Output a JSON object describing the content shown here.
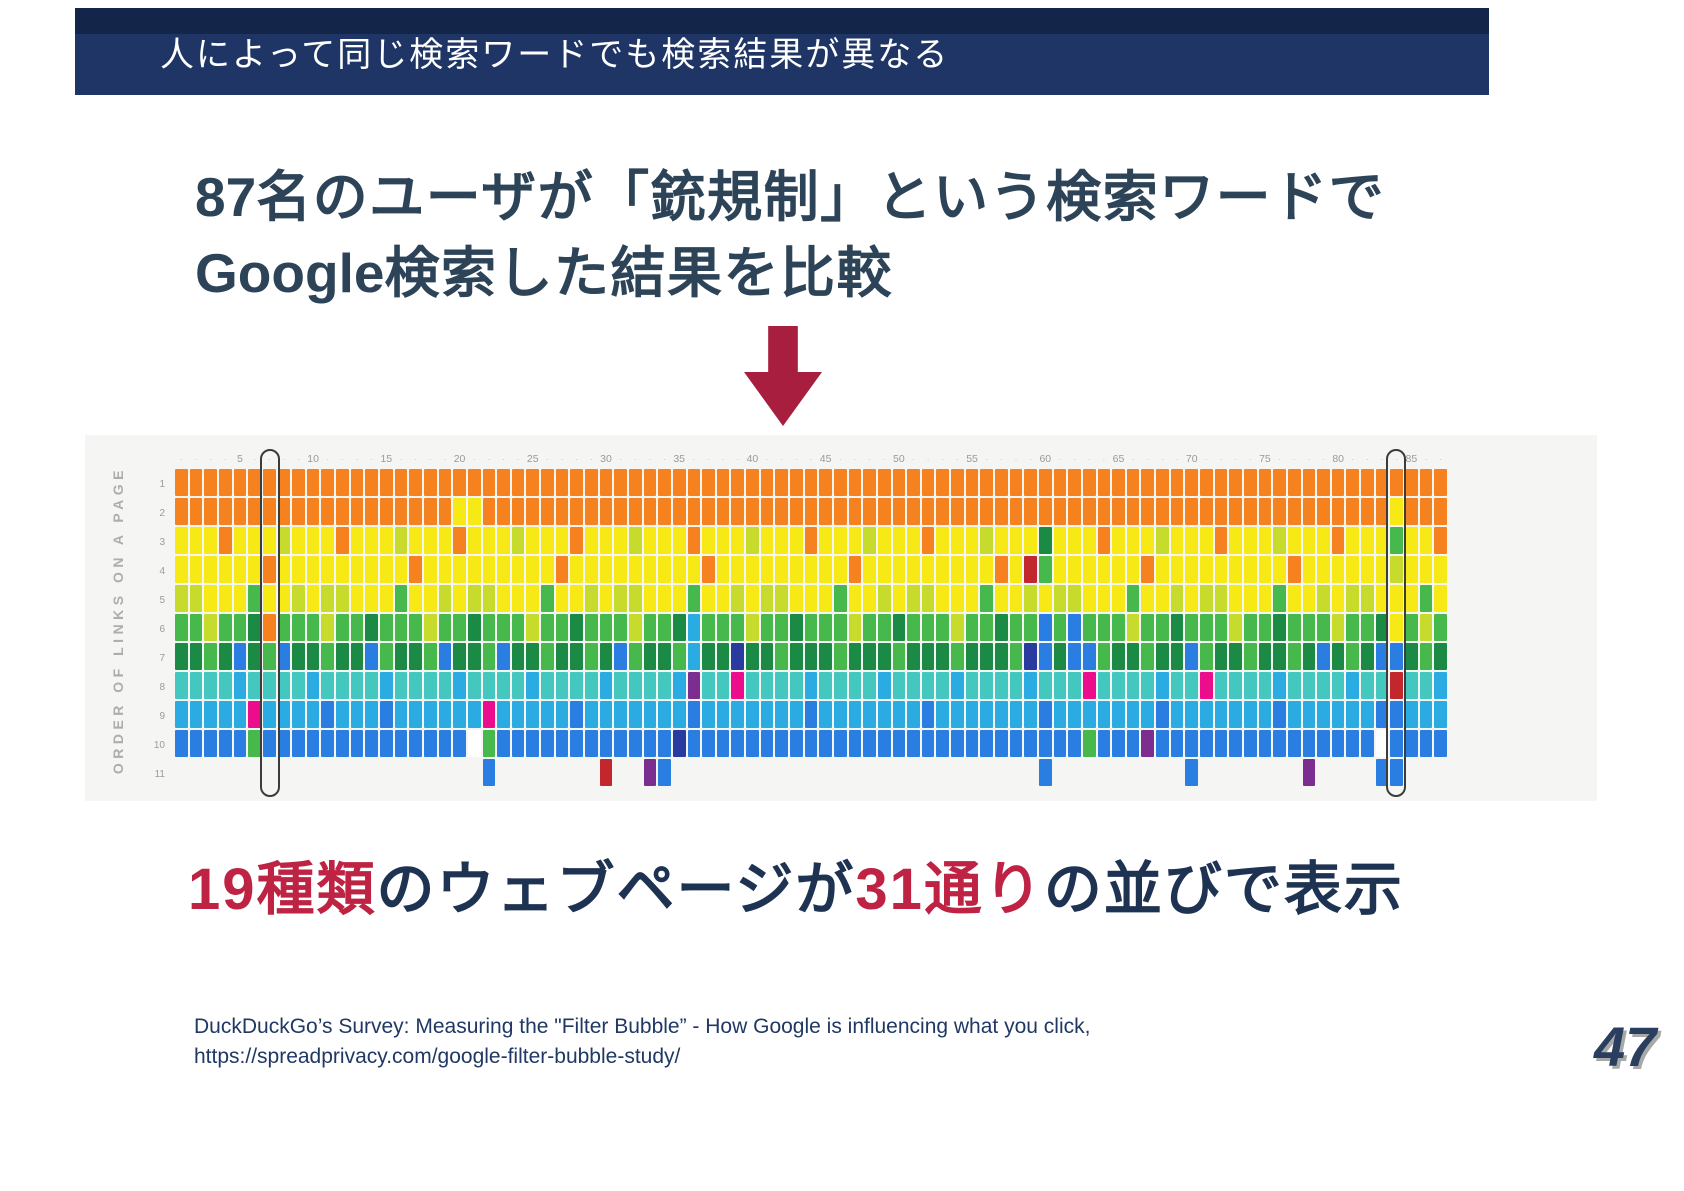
{
  "header": {
    "title": "人によって同じ検索ワードでも検索結果が異なる",
    "bg_color": "#1e3565"
  },
  "heading": {
    "line1": {
      "num": "87",
      "pre": "名のユーザが「",
      "term": "銃規制",
      "post": "」という検索ワードで"
    },
    "line2": {
      "en": "Google",
      "text": "検索した結果を比較"
    }
  },
  "arrow_color": "#a81e3f",
  "conclusion": {
    "red1": "19種類",
    "navy1": "のウェブページが",
    "red2": "31通り",
    "navy2": "の並びで表示",
    "red_color": "#be2343",
    "navy_color": "#1e3252"
  },
  "footer": {
    "line1": "DuckDuckGo’s Survey: Measuring the \"Filter Bubble” - How Google is influencing what you click,",
    "line2": "https://spreadprivacy.com/google-filter-bubble-study/",
    "page_number": "47"
  },
  "chart_data": {
    "type": "heatmap",
    "title": "",
    "ylabel": "ORDER OF LINKS ON A PAGE",
    "n_cols": 87,
    "x_tick_interval": 5,
    "x_tick_labels": [
      5,
      10,
      15,
      20,
      25,
      30,
      35,
      40,
      45,
      50,
      55,
      60,
      65,
      70,
      75,
      80,
      85
    ],
    "row_labels": [
      "1",
      "2",
      "3",
      "4",
      "5",
      "6",
      "7",
      "8",
      "9",
      "10",
      "11"
    ],
    "highlighted_columns": [
      7,
      84
    ],
    "palette": {
      "O": "#F6821F",
      "Y": "#F6E916",
      "G": "#C6DB2B",
      "g": "#47B84C",
      "D": "#1B8A44",
      "T": "#43C7BE",
      "C": "#2AACE3",
      "B": "#2A7DE1",
      "N": "#2A3B9F",
      "M": "#EB0D8C",
      "R": "#C1272D",
      "P": "#7B2D90",
      "W": "#FFFFFF",
      "_": "transparent"
    },
    "rows": [
      [
        [
          87,
          "O"
        ]
      ],
      [
        [
          19,
          "O"
        ],
        [
          2,
          "Y"
        ],
        [
          62,
          "O"
        ],
        [
          1,
          "Y"
        ],
        [
          3,
          "O"
        ]
      ],
      [
        [
          3,
          "Y"
        ],
        [
          1,
          "O"
        ],
        [
          3,
          "Y"
        ],
        [
          1,
          "G"
        ],
        [
          3,
          "Y"
        ],
        [
          1,
          "O"
        ],
        [
          3,
          "Y"
        ],
        [
          1,
          "G"
        ],
        [
          3,
          "Y"
        ],
        [
          1,
          "O"
        ],
        [
          3,
          "Y"
        ],
        [
          1,
          "G"
        ],
        [
          3,
          "Y"
        ],
        [
          1,
          "O"
        ],
        [
          3,
          "Y"
        ],
        [
          1,
          "G"
        ],
        [
          3,
          "Y"
        ],
        [
          1,
          "O"
        ],
        [
          3,
          "Y"
        ],
        [
          1,
          "G"
        ],
        [
          3,
          "Y"
        ],
        [
          1,
          "O"
        ],
        [
          3,
          "Y"
        ],
        [
          1,
          "G"
        ],
        [
          3,
          "Y"
        ],
        [
          1,
          "O"
        ],
        [
          3,
          "Y"
        ],
        [
          1,
          "G"
        ],
        [
          3,
          "Y"
        ],
        [
          1,
          "D"
        ],
        [
          3,
          "Y"
        ],
        [
          1,
          "O"
        ],
        [
          3,
          "Y"
        ],
        [
          1,
          "G"
        ],
        [
          3,
          "Y"
        ],
        [
          1,
          "O"
        ],
        [
          3,
          "Y"
        ],
        [
          1,
          "G"
        ],
        [
          3,
          "Y"
        ],
        [
          1,
          "O"
        ],
        [
          3,
          "Y"
        ],
        [
          1,
          "g"
        ],
        [
          2,
          "Y"
        ],
        [
          1,
          "O"
        ]
      ],
      [
        [
          6,
          "Y"
        ],
        [
          1,
          "O"
        ],
        [
          3,
          "Y"
        ],
        [
          6,
          "Y"
        ],
        [
          1,
          "O"
        ],
        [
          3,
          "Y"
        ],
        [
          6,
          "Y"
        ],
        [
          1,
          "O"
        ],
        [
          3,
          "Y"
        ],
        [
          6,
          "Y"
        ],
        [
          1,
          "O"
        ],
        [
          3,
          "Y"
        ],
        [
          6,
          "Y"
        ],
        [
          1,
          "O"
        ],
        [
          3,
          "Y"
        ],
        [
          6,
          "Y"
        ],
        [
          1,
          "O"
        ],
        [
          1,
          "Y"
        ],
        [
          1,
          "R"
        ],
        [
          1,
          "g"
        ],
        [
          6,
          "Y"
        ],
        [
          1,
          "O"
        ],
        [
          3,
          "Y"
        ],
        [
          6,
          "Y"
        ],
        [
          1,
          "O"
        ],
        [
          3,
          "Y"
        ],
        [
          3,
          "Y"
        ],
        [
          1,
          "G"
        ],
        [
          3,
          "Y"
        ]
      ],
      [
        [
          2,
          "G"
        ],
        [
          3,
          "Y"
        ],
        [
          1,
          "g"
        ],
        [
          2,
          "Y"
        ],
        [
          1,
          "G"
        ],
        [
          1,
          "Y"
        ],
        [
          2,
          "G"
        ],
        [
          3,
          "Y"
        ],
        [
          1,
          "g"
        ],
        [
          2,
          "Y"
        ],
        [
          1,
          "G"
        ],
        [
          1,
          "Y"
        ],
        [
          2,
          "G"
        ],
        [
          3,
          "Y"
        ],
        [
          1,
          "g"
        ],
        [
          2,
          "Y"
        ],
        [
          1,
          "G"
        ],
        [
          1,
          "Y"
        ],
        [
          2,
          "G"
        ],
        [
          3,
          "Y"
        ],
        [
          1,
          "g"
        ],
        [
          2,
          "Y"
        ],
        [
          1,
          "G"
        ],
        [
          1,
          "Y"
        ],
        [
          2,
          "G"
        ],
        [
          3,
          "Y"
        ],
        [
          1,
          "g"
        ],
        [
          2,
          "Y"
        ],
        [
          1,
          "G"
        ],
        [
          1,
          "Y"
        ],
        [
          2,
          "G"
        ],
        [
          3,
          "Y"
        ],
        [
          1,
          "g"
        ],
        [
          2,
          "Y"
        ],
        [
          1,
          "G"
        ],
        [
          1,
          "Y"
        ],
        [
          2,
          "G"
        ],
        [
          3,
          "Y"
        ],
        [
          1,
          "g"
        ],
        [
          2,
          "Y"
        ],
        [
          1,
          "G"
        ],
        [
          1,
          "Y"
        ],
        [
          2,
          "G"
        ],
        [
          3,
          "Y"
        ],
        [
          1,
          "g"
        ],
        [
          2,
          "Y"
        ],
        [
          1,
          "G"
        ],
        [
          1,
          "Y"
        ],
        [
          2,
          "G"
        ],
        [
          3,
          "Y"
        ],
        [
          1,
          "g"
        ],
        [
          1,
          "Y"
        ]
      ],
      [
        [
          2,
          "g"
        ],
        [
          1,
          "G"
        ],
        [
          2,
          "g"
        ],
        [
          1,
          "D"
        ],
        [
          1,
          "O"
        ],
        [
          3,
          "g"
        ],
        [
          1,
          "G"
        ],
        [
          2,
          "g"
        ],
        [
          1,
          "D"
        ],
        [
          3,
          "g"
        ],
        [
          1,
          "G"
        ],
        [
          2,
          "g"
        ],
        [
          1,
          "D"
        ],
        [
          3,
          "g"
        ],
        [
          1,
          "G"
        ],
        [
          2,
          "g"
        ],
        [
          1,
          "D"
        ],
        [
          3,
          "g"
        ],
        [
          1,
          "G"
        ],
        [
          2,
          "g"
        ],
        [
          1,
          "D"
        ],
        [
          1,
          "C"
        ],
        [
          3,
          "g"
        ],
        [
          1,
          "G"
        ],
        [
          2,
          "g"
        ],
        [
          1,
          "D"
        ],
        [
          3,
          "g"
        ],
        [
          1,
          "G"
        ],
        [
          2,
          "g"
        ],
        [
          1,
          "D"
        ],
        [
          3,
          "g"
        ],
        [
          1,
          "G"
        ],
        [
          2,
          "g"
        ],
        [
          1,
          "D"
        ],
        [
          2,
          "g"
        ],
        [
          1,
          "B"
        ],
        [
          1,
          "g"
        ],
        [
          1,
          "B"
        ],
        [
          3,
          "g"
        ],
        [
          1,
          "G"
        ],
        [
          2,
          "g"
        ],
        [
          1,
          "D"
        ],
        [
          3,
          "g"
        ],
        [
          1,
          "G"
        ],
        [
          2,
          "g"
        ],
        [
          1,
          "D"
        ],
        [
          3,
          "g"
        ],
        [
          1,
          "G"
        ],
        [
          2,
          "g"
        ],
        [
          1,
          "D"
        ],
        [
          1,
          "Y"
        ],
        [
          1,
          "g"
        ],
        [
          1,
          "G"
        ],
        [
          1,
          "g"
        ]
      ],
      [
        [
          2,
          "D"
        ],
        [
          1,
          "g"
        ],
        [
          1,
          "D"
        ],
        [
          1,
          "B"
        ],
        [
          1,
          "D"
        ],
        [
          1,
          "g"
        ],
        [
          1,
          "B"
        ],
        [
          2,
          "D"
        ],
        [
          1,
          "g"
        ],
        [
          2,
          "D"
        ],
        [
          1,
          "B"
        ],
        [
          1,
          "g"
        ],
        [
          2,
          "D"
        ],
        [
          1,
          "g"
        ],
        [
          1,
          "B"
        ],
        [
          2,
          "D"
        ],
        [
          1,
          "g"
        ],
        [
          1,
          "B"
        ],
        [
          2,
          "D"
        ],
        [
          1,
          "g"
        ],
        [
          2,
          "D"
        ],
        [
          1,
          "g"
        ],
        [
          1,
          "D"
        ],
        [
          1,
          "B"
        ],
        [
          1,
          "g"
        ],
        [
          2,
          "D"
        ],
        [
          1,
          "g"
        ],
        [
          1,
          "C"
        ],
        [
          2,
          "D"
        ],
        [
          1,
          "N"
        ],
        [
          2,
          "D"
        ],
        [
          1,
          "g"
        ],
        [
          1,
          "D"
        ],
        [
          2,
          "D"
        ],
        [
          1,
          "g"
        ],
        [
          1,
          "D"
        ],
        [
          2,
          "D"
        ],
        [
          1,
          "g"
        ],
        [
          1,
          "D"
        ],
        [
          2,
          "D"
        ],
        [
          1,
          "g"
        ],
        [
          1,
          "D"
        ],
        [
          2,
          "D"
        ],
        [
          1,
          "g"
        ],
        [
          1,
          "N"
        ],
        [
          1,
          "B"
        ],
        [
          1,
          "D"
        ],
        [
          1,
          "B"
        ],
        [
          1,
          "B"
        ],
        [
          1,
          "g"
        ],
        [
          2,
          "D"
        ],
        [
          1,
          "g"
        ],
        [
          2,
          "D"
        ],
        [
          1,
          "B"
        ],
        [
          1,
          "g"
        ],
        [
          2,
          "D"
        ],
        [
          1,
          "g"
        ],
        [
          2,
          "D"
        ],
        [
          1,
          "g"
        ],
        [
          1,
          "D"
        ],
        [
          1,
          "B"
        ],
        [
          1,
          "D"
        ],
        [
          1,
          "g"
        ],
        [
          1,
          "D"
        ],
        [
          1,
          "B"
        ],
        [
          1,
          "B"
        ],
        [
          1,
          "D"
        ],
        [
          1,
          "g"
        ],
        [
          1,
          "D"
        ]
      ],
      [
        [
          4,
          "T"
        ],
        [
          1,
          "C"
        ],
        [
          4,
          "T"
        ],
        [
          1,
          "C"
        ],
        [
          4,
          "T"
        ],
        [
          1,
          "C"
        ],
        [
          4,
          "T"
        ],
        [
          1,
          "C"
        ],
        [
          4,
          "T"
        ],
        [
          1,
          "C"
        ],
        [
          4,
          "T"
        ],
        [
          1,
          "C"
        ],
        [
          4,
          "T"
        ],
        [
          1,
          "C"
        ],
        [
          1,
          "P"
        ],
        [
          2,
          "T"
        ],
        [
          1,
          "M"
        ],
        [
          4,
          "T"
        ],
        [
          1,
          "C"
        ],
        [
          4,
          "T"
        ],
        [
          1,
          "C"
        ],
        [
          4,
          "T"
        ],
        [
          1,
          "C"
        ],
        [
          4,
          "T"
        ],
        [
          1,
          "C"
        ],
        [
          3,
          "T"
        ],
        [
          1,
          "M"
        ],
        [
          4,
          "T"
        ],
        [
          1,
          "C"
        ],
        [
          2,
          "T"
        ],
        [
          1,
          "M"
        ],
        [
          4,
          "T"
        ],
        [
          1,
          "C"
        ],
        [
          4,
          "T"
        ],
        [
          1,
          "C"
        ],
        [
          2,
          "T"
        ],
        [
          1,
          "R"
        ],
        [
          2,
          "T"
        ],
        [
          1,
          "C"
        ]
      ],
      [
        [
          5,
          "C"
        ],
        [
          1,
          "M"
        ],
        [
          4,
          "C"
        ],
        [
          1,
          "B"
        ],
        [
          3,
          "C"
        ],
        [
          1,
          "B"
        ],
        [
          6,
          "C"
        ],
        [
          1,
          "M"
        ],
        [
          5,
          "C"
        ],
        [
          1,
          "B"
        ],
        [
          2,
          "C"
        ],
        [
          5,
          "C"
        ],
        [
          1,
          "B"
        ],
        [
          2,
          "C"
        ],
        [
          5,
          "C"
        ],
        [
          1,
          "B"
        ],
        [
          2,
          "C"
        ],
        [
          5,
          "C"
        ],
        [
          1,
          "B"
        ],
        [
          2,
          "C"
        ],
        [
          5,
          "C"
        ],
        [
          1,
          "B"
        ],
        [
          2,
          "C"
        ],
        [
          5,
          "C"
        ],
        [
          1,
          "B"
        ],
        [
          2,
          "C"
        ],
        [
          5,
          "C"
        ],
        [
          1,
          "B"
        ],
        [
          2,
          "C"
        ],
        [
          4,
          "C"
        ],
        [
          2,
          "B"
        ],
        [
          3,
          "C"
        ]
      ],
      [
        [
          5,
          "B"
        ],
        [
          1,
          "g"
        ],
        [
          14,
          "B"
        ],
        [
          1,
          "W"
        ],
        [
          1,
          "g"
        ],
        [
          12,
          "B"
        ],
        [
          1,
          "N"
        ],
        [
          27,
          "B"
        ],
        [
          1,
          "g"
        ],
        [
          3,
          "B"
        ],
        [
          1,
          "P"
        ],
        [
          15,
          "B"
        ],
        [
          1,
          "W"
        ],
        [
          4,
          "B"
        ]
      ],
      [
        [
          21,
          "_"
        ],
        [
          1,
          "B"
        ],
        [
          7,
          "_"
        ],
        [
          1,
          "R"
        ],
        [
          2,
          "_"
        ],
        [
          1,
          "P"
        ],
        [
          1,
          "B"
        ],
        [
          25,
          "_"
        ],
        [
          1,
          "B"
        ],
        [
          9,
          "_"
        ],
        [
          1,
          "B"
        ],
        [
          7,
          "_"
        ],
        [
          1,
          "P"
        ],
        [
          4,
          "_"
        ],
        [
          2,
          "B"
        ],
        [
          3,
          "_"
        ]
      ]
    ]
  }
}
